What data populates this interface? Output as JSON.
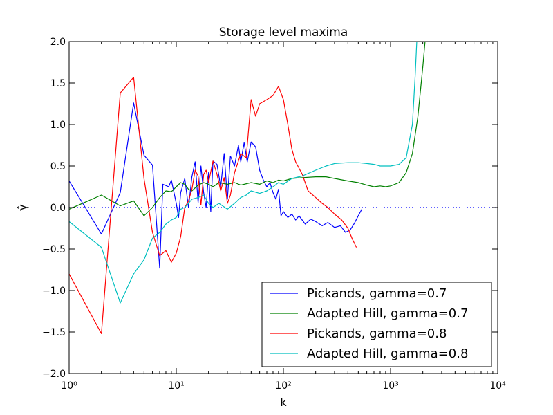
{
  "chart_data": {
    "type": "line",
    "title": "Storage level maxima",
    "xlabel": "k",
    "ylabel": "γ̂",
    "xscale": "log",
    "xlim": [
      1,
      10000
    ],
    "ylim": [
      -2.0,
      2.0
    ],
    "xtick_labels": [
      "10⁰",
      "10¹",
      "10²",
      "10³",
      "10⁴"
    ],
    "xticks": [
      1,
      10,
      100,
      1000,
      10000
    ],
    "yticks": [
      -2.0,
      -1.5,
      -1.0,
      -0.5,
      0.0,
      0.5,
      1.0,
      1.5,
      2.0
    ],
    "ytick_labels": [
      "−2.0",
      "−1.5",
      "−1.0",
      "−0.5",
      "0.0",
      "0.5",
      "1.0",
      "1.5",
      "2.0"
    ],
    "grid": false,
    "legend_position": "lower-right",
    "reference_line": {
      "y": 0,
      "style": "dotted",
      "color": "#0000ff"
    },
    "series": [
      {
        "name": "Pickands, gamma=0.7",
        "color": "#0000ff",
        "points": [
          [
            1,
            0.32
          ],
          [
            2,
            -0.32
          ],
          [
            3,
            0.18
          ],
          [
            4,
            1.26
          ],
          [
            5,
            0.63
          ],
          [
            6,
            0.51
          ],
          [
            7,
            -0.73
          ],
          [
            7.5,
            0.28
          ],
          [
            8.5,
            0.25
          ],
          [
            9,
            0.33
          ],
          [
            10,
            0.05
          ],
          [
            10.5,
            -0.12
          ],
          [
            11,
            0.18
          ],
          [
            12,
            0.35
          ],
          [
            13,
            0.0
          ],
          [
            14,
            0.37
          ],
          [
            15,
            0.55
          ],
          [
            16,
            0.06
          ],
          [
            17,
            0.5
          ],
          [
            18,
            0.18
          ],
          [
            19,
            0.0
          ],
          [
            20,
            0.42
          ],
          [
            21,
            -0.05
          ],
          [
            22,
            0.56
          ],
          [
            24,
            0.52
          ],
          [
            26,
            0.25
          ],
          [
            28,
            0.65
          ],
          [
            30,
            0.1
          ],
          [
            32,
            0.62
          ],
          [
            35,
            0.5
          ],
          [
            38,
            0.75
          ],
          [
            40,
            0.55
          ],
          [
            43,
            0.78
          ],
          [
            46,
            0.55
          ],
          [
            50,
            0.79
          ],
          [
            55,
            0.73
          ],
          [
            60,
            0.45
          ],
          [
            65,
            0.33
          ],
          [
            70,
            0.25
          ],
          [
            75,
            0.3
          ],
          [
            80,
            0.18
          ],
          [
            85,
            0.1
          ],
          [
            90,
            0.22
          ],
          [
            95,
            -0.1
          ],
          [
            100,
            -0.05
          ],
          [
            110,
            -0.12
          ],
          [
            120,
            -0.08
          ],
          [
            130,
            -0.15
          ],
          [
            140,
            -0.1
          ],
          [
            160,
            -0.2
          ],
          [
            180,
            -0.14
          ],
          [
            200,
            -0.17
          ],
          [
            230,
            -0.22
          ],
          [
            260,
            -0.18
          ],
          [
            300,
            -0.24
          ],
          [
            340,
            -0.22
          ],
          [
            380,
            -0.3
          ],
          [
            420,
            -0.27
          ],
          [
            460,
            -0.19
          ],
          [
            500,
            -0.1
          ],
          [
            540,
            -0.02
          ]
        ]
      },
      {
        "name": "Adapted Hill, gamma=0.7",
        "color": "#008000",
        "points": [
          [
            1,
            -0.02
          ],
          [
            2,
            0.15
          ],
          [
            3,
            0.02
          ],
          [
            4,
            0.08
          ],
          [
            5,
            -0.1
          ],
          [
            6,
            0.0
          ],
          [
            7,
            0.12
          ],
          [
            8,
            0.2
          ],
          [
            9,
            0.19
          ],
          [
            10,
            0.25
          ],
          [
            11,
            0.3
          ],
          [
            12,
            0.28
          ],
          [
            13,
            0.22
          ],
          [
            14,
            0.2
          ],
          [
            16,
            0.27
          ],
          [
            18,
            0.3
          ],
          [
            20,
            0.28
          ],
          [
            22,
            0.25
          ],
          [
            25,
            0.3
          ],
          [
            30,
            0.28
          ],
          [
            35,
            0.3
          ],
          [
            40,
            0.27
          ],
          [
            50,
            0.3
          ],
          [
            60,
            0.28
          ],
          [
            70,
            0.32
          ],
          [
            80,
            0.3
          ],
          [
            90,
            0.33
          ],
          [
            100,
            0.32
          ],
          [
            120,
            0.35
          ],
          [
            150,
            0.36
          ],
          [
            200,
            0.37
          ],
          [
            250,
            0.37
          ],
          [
            300,
            0.35
          ],
          [
            400,
            0.32
          ],
          [
            500,
            0.3
          ],
          [
            600,
            0.27
          ],
          [
            700,
            0.25
          ],
          [
            800,
            0.26
          ],
          [
            900,
            0.25
          ],
          [
            1000,
            0.26
          ],
          [
            1200,
            0.3
          ],
          [
            1400,
            0.42
          ],
          [
            1600,
            0.65
          ],
          [
            1800,
            1.1
          ],
          [
            2000,
            1.7
          ],
          [
            2200,
            2.3
          ]
        ]
      },
      {
        "name": "Pickands, gamma=0.8",
        "color": "#ff0000",
        "points": [
          [
            1,
            -0.8
          ],
          [
            2,
            -1.52
          ],
          [
            3,
            1.38
          ],
          [
            4,
            1.57
          ],
          [
            5,
            0.35
          ],
          [
            6,
            -0.3
          ],
          [
            7,
            -0.58
          ],
          [
            8,
            -0.52
          ],
          [
            9,
            -0.66
          ],
          [
            10,
            -0.55
          ],
          [
            11,
            -0.35
          ],
          [
            12,
            0.0
          ],
          [
            13,
            0.08
          ],
          [
            14,
            0.22
          ],
          [
            15,
            0.45
          ],
          [
            16,
            0.38
          ],
          [
            17,
            0.03
          ],
          [
            18,
            0.4
          ],
          [
            19,
            0.45
          ],
          [
            20,
            0.3
          ],
          [
            22,
            0.56
          ],
          [
            24,
            0.4
          ],
          [
            26,
            0.2
          ],
          [
            28,
            0.36
          ],
          [
            30,
            0.05
          ],
          [
            32,
            0.15
          ],
          [
            35,
            0.42
          ],
          [
            38,
            0.56
          ],
          [
            40,
            0.65
          ],
          [
            45,
            0.6
          ],
          [
            50,
            1.3
          ],
          [
            55,
            1.1
          ],
          [
            60,
            1.25
          ],
          [
            70,
            1.3
          ],
          [
            80,
            1.35
          ],
          [
            90,
            1.46
          ],
          [
            100,
            1.3
          ],
          [
            110,
            1.0
          ],
          [
            120,
            0.7
          ],
          [
            130,
            0.55
          ],
          [
            150,
            0.4
          ],
          [
            170,
            0.2
          ],
          [
            200,
            0.12
          ],
          [
            230,
            0.05
          ],
          [
            260,
            0.0
          ],
          [
            300,
            -0.08
          ],
          [
            350,
            -0.15
          ],
          [
            400,
            -0.25
          ],
          [
            440,
            -0.38
          ],
          [
            480,
            -0.48
          ]
        ]
      },
      {
        "name": "Adapted Hill, gamma=0.8",
        "color": "#00bfbf",
        "points": [
          [
            1,
            -0.17
          ],
          [
            2,
            -0.48
          ],
          [
            3,
            -1.15
          ],
          [
            4,
            -0.8
          ],
          [
            5,
            -0.63
          ],
          [
            6,
            -0.37
          ],
          [
            7,
            -0.3
          ],
          [
            8,
            -0.2
          ],
          [
            9,
            -0.15
          ],
          [
            10,
            -0.12
          ],
          [
            11,
            -0.02
          ],
          [
            12,
            0.0
          ],
          [
            13,
            0.05
          ],
          [
            14,
            0.1
          ],
          [
            16,
            0.12
          ],
          [
            18,
            0.15
          ],
          [
            20,
            0.05
          ],
          [
            22,
            0.0
          ],
          [
            25,
            0.05
          ],
          [
            30,
            -0.02
          ],
          [
            35,
            0.05
          ],
          [
            40,
            0.12
          ],
          [
            45,
            0.15
          ],
          [
            50,
            0.2
          ],
          [
            60,
            0.17
          ],
          [
            70,
            0.2
          ],
          [
            80,
            0.25
          ],
          [
            90,
            0.3
          ],
          [
            100,
            0.28
          ],
          [
            120,
            0.35
          ],
          [
            150,
            0.38
          ],
          [
            200,
            0.45
          ],
          [
            250,
            0.5
          ],
          [
            300,
            0.53
          ],
          [
            400,
            0.54
          ],
          [
            500,
            0.54
          ],
          [
            600,
            0.53
          ],
          [
            700,
            0.52
          ],
          [
            800,
            0.5
          ],
          [
            900,
            0.5
          ],
          [
            1000,
            0.5
          ],
          [
            1200,
            0.52
          ],
          [
            1400,
            0.6
          ],
          [
            1600,
            1.0
          ],
          [
            1700,
            1.6
          ],
          [
            1800,
            2.3
          ]
        ]
      }
    ]
  }
}
